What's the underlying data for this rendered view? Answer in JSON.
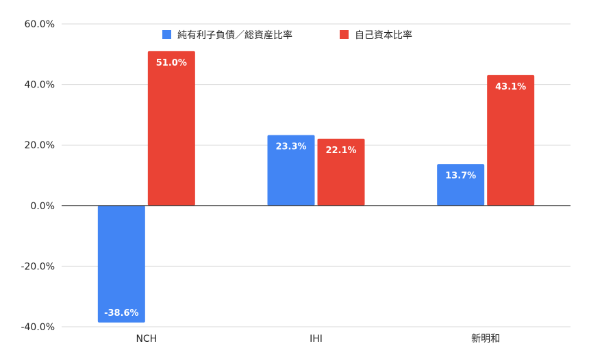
{
  "chart_data": {
    "type": "bar",
    "title": "",
    "xlabel": "",
    "ylabel": "",
    "categories": [
      "NCH",
      "IHI",
      "新明和"
    ],
    "series": [
      {
        "name": "純有利子負債／総資産比率",
        "values": [
          -38.6,
          23.3,
          13.7
        ],
        "labels": [
          "-38.6%",
          "23.3%",
          "13.7%"
        ],
        "color": "#4285f4"
      },
      {
        "name": "自己資本比率",
        "values": [
          51.0,
          22.1,
          43.1
        ],
        "labels": [
          "51.0%",
          "22.1%",
          "43.1%"
        ],
        "color": "#ea4335"
      }
    ],
    "ylim": [
      -40,
      60
    ],
    "yticks": [
      60,
      40,
      20,
      0,
      -20,
      -40
    ],
    "ytick_labels": [
      "60.0%",
      "40.0%",
      "20.0%",
      "0.0%",
      "-20.0%",
      "-40.0%"
    ],
    "grid": true,
    "legend_position": "top-center"
  }
}
